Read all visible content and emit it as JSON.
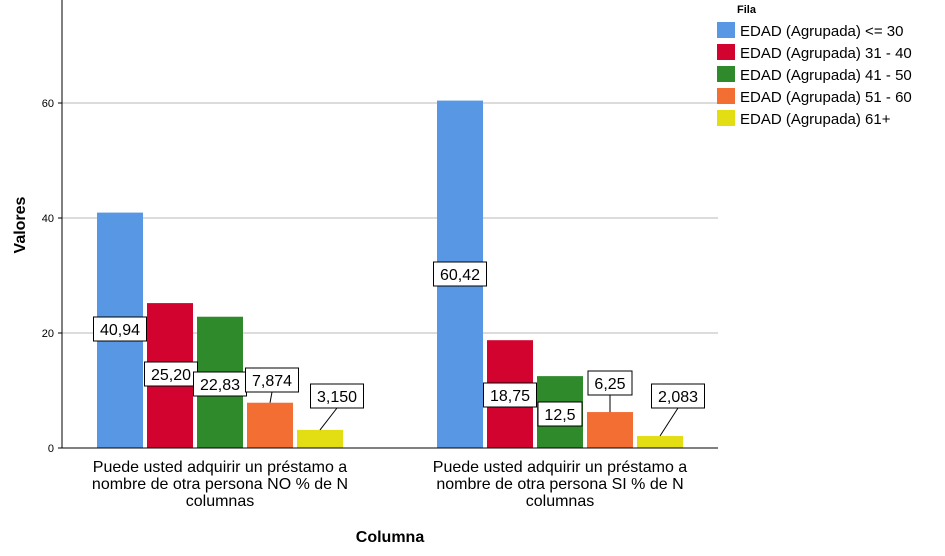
{
  "chart_data": {
    "type": "bar",
    "title": "",
    "xlabel": "Columna",
    "ylabel": "Valores",
    "ylim": [
      0,
      80
    ],
    "yticks": [
      0,
      20,
      40,
      60
    ],
    "grid": true,
    "legend_title": "Fila",
    "legend_position": "top-right",
    "categories": [
      [
        "Puede usted adquirir un préstamo a",
        "nombre de otra persona NO % de N",
        "columnas"
      ],
      [
        "Puede usted adquirir un préstamo a",
        "nombre de otra persona SI % de N",
        "columnas"
      ]
    ],
    "series": [
      {
        "name": "EDAD (Agrupada) <= 30",
        "color": "#5897E3",
        "values": [
          40.94,
          60.42
        ],
        "labels": [
          "40,94",
          "60,42"
        ]
      },
      {
        "name": "EDAD (Agrupada) 31 - 40",
        "color": "#D30330",
        "values": [
          25.2,
          18.75
        ],
        "labels": [
          "25,20",
          "18,75"
        ]
      },
      {
        "name": "EDAD (Agrupada) 41 - 50",
        "color": "#2E8A2B",
        "values": [
          22.83,
          12.5
        ],
        "labels": [
          "22,83",
          "12,5"
        ]
      },
      {
        "name": "EDAD (Agrupada) 51 - 60",
        "color": "#F26E33",
        "values": [
          7.874,
          6.25
        ],
        "labels": [
          "7,874",
          "6,25"
        ]
      },
      {
        "name": "EDAD (Agrupada) 61+",
        "color": "#E3DD14",
        "values": [
          3.15,
          2.083
        ],
        "labels": [
          "3,150",
          "2,083"
        ]
      }
    ]
  }
}
